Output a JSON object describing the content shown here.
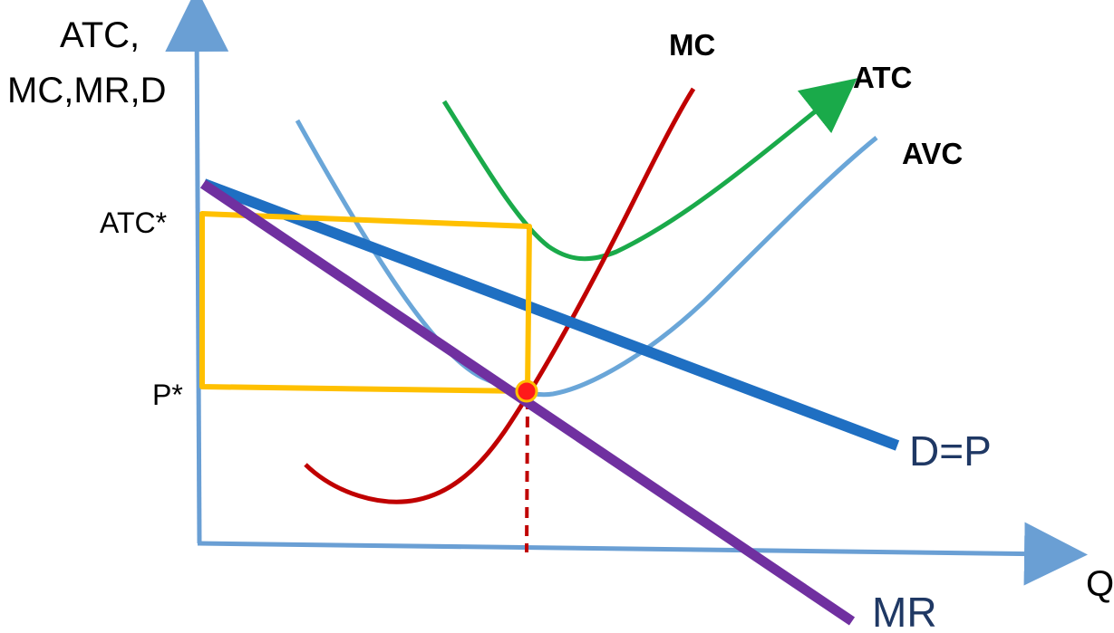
{
  "diagram": {
    "y_axis_label_line1": "ATC,",
    "y_axis_label_line2": "MC,MR,D",
    "x_axis_label": "Q",
    "price_levels": {
      "atc_star": "ATC*",
      "p_star": "P*"
    },
    "curves": {
      "mc": "MC",
      "atc": "ATC",
      "avc": "AVC",
      "demand": "D=P",
      "mr": "MR"
    },
    "colors": {
      "axes": "#6a9fd4",
      "mc": "#c00000",
      "atc": "#1aaa4a",
      "avc": "#6aa6d8",
      "demand": "#1f6fc2",
      "mr": "#7030a0",
      "rectangle": "#ffc000",
      "optimum_point": "#ff1a1a",
      "demand_label": "#1f3864"
    }
  }
}
